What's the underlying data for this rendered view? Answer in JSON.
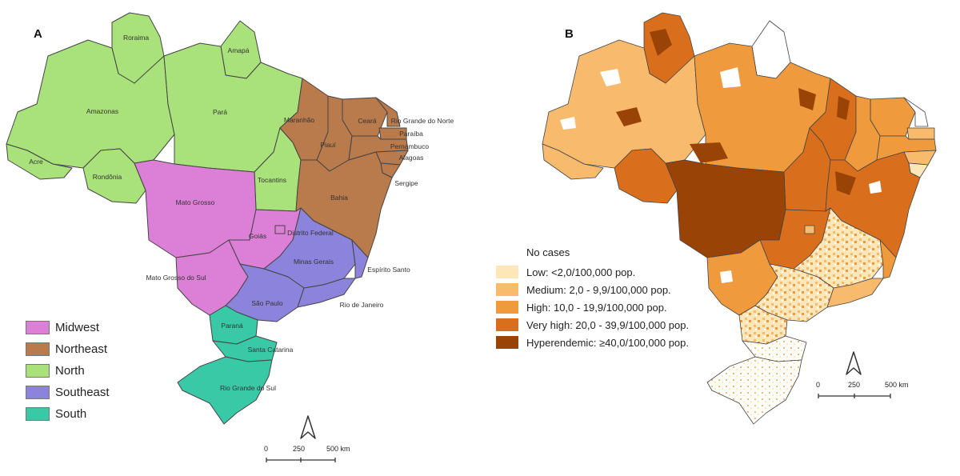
{
  "panel_a": {
    "letter": "A",
    "states": [
      {
        "name": "Roraima",
        "region": "North"
      },
      {
        "name": "Amapá",
        "region": "North"
      },
      {
        "name": "Amazonas",
        "region": "North"
      },
      {
        "name": "Pará",
        "region": "North"
      },
      {
        "name": "Acre",
        "region": "North"
      },
      {
        "name": "Rondônia",
        "region": "North"
      },
      {
        "name": "Tocantins",
        "region": "North"
      },
      {
        "name": "Maranhão",
        "region": "Northeast"
      },
      {
        "name": "Ceará",
        "region": "Northeast"
      },
      {
        "name": "Rio Grande do Norte",
        "region": "Northeast"
      },
      {
        "name": "Paraíba",
        "region": "Northeast"
      },
      {
        "name": "Piauí",
        "region": "Northeast"
      },
      {
        "name": "Pernambuco",
        "region": "Northeast"
      },
      {
        "name": "Alagoas",
        "region": "Northeast"
      },
      {
        "name": "Sergipe",
        "region": "Northeast"
      },
      {
        "name": "Bahia",
        "region": "Northeast"
      },
      {
        "name": "Mato Grosso",
        "region": "Midwest"
      },
      {
        "name": "Goiás",
        "region": "Midwest"
      },
      {
        "name": "Distrito Federal",
        "region": "Midwest"
      },
      {
        "name": "Mato Grosso do Sul",
        "region": "Midwest"
      },
      {
        "name": "Minas Gerais",
        "region": "Southeast"
      },
      {
        "name": "Espírito Santo",
        "region": "Southeast"
      },
      {
        "name": "São Paulo",
        "region": "Southeast"
      },
      {
        "name": "Rio de Janeiro",
        "region": "Southeast"
      },
      {
        "name": "Paraná",
        "region": "South"
      },
      {
        "name": "Santa Catarina",
        "region": "South"
      },
      {
        "name": "Rio Grande do Sul",
        "region": "South"
      }
    ],
    "legend": [
      {
        "label": "Midwest",
        "color": "#dc7fd6"
      },
      {
        "label": "Northeast",
        "color": "#b97a4c"
      },
      {
        "label": "North",
        "color": "#a9e27a"
      },
      {
        "label": "Southeast",
        "color": "#8c83dc"
      },
      {
        "label": "South",
        "color": "#39c9a6"
      }
    ],
    "scale": [
      "0",
      "250",
      "500 km"
    ]
  },
  "panel_b": {
    "letter": "B",
    "legend_title": "No cases",
    "legend": [
      {
        "label": "Low: <2,0/100,000 pop.",
        "color": "#fde7b8"
      },
      {
        "label": "Medium: 2,0 - 9,9/100,000 pop.",
        "color": "#f8bb6e"
      },
      {
        "label": "High: 10,0 - 19,9/100,000 pop.",
        "color": "#ef9a3c"
      },
      {
        "label": "Very high: 20,0 - 39,9/100,000 pop.",
        "color": "#d96f1d"
      },
      {
        "label": "Hyperendemic: ≥40,0/100,000 pop.",
        "color": "#9a4307"
      }
    ],
    "scale": [
      "0",
      "250",
      "500 km"
    ]
  }
}
